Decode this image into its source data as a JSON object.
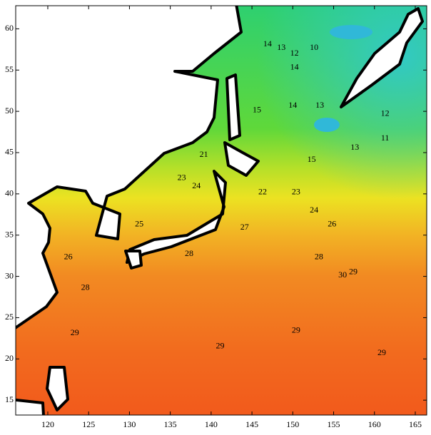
{
  "chart_data": {
    "type": "contour",
    "xlim": [
      116.07,
      166.4
    ],
    "ylim": [
      13.2,
      62.8
    ],
    "xticks": [
      120,
      125,
      130,
      135,
      140,
      145,
      150,
      155,
      160,
      165
    ],
    "yticks": [
      15,
      20,
      25,
      30,
      35,
      40,
      45,
      50,
      55,
      60
    ],
    "x": [
      146.9,
      148.6,
      150.2,
      152.6,
      150.2,
      145.6,
      150.0,
      153.3,
      161.3,
      161.3,
      157.6,
      152.3,
      139.1,
      136.4,
      138.2,
      146.3,
      150.4,
      152.6,
      154.8,
      144.1,
      137.3,
      153.2,
      156.1,
      157.4,
      124.6,
      131.2,
      122.5,
      150.4,
      141.1,
      123.3,
      160.9
    ],
    "y": [
      58.1,
      57.7,
      57.0,
      57.7,
      55.3,
      50.1,
      50.7,
      50.7,
      49.7,
      46.7,
      45.6,
      44.1,
      44.7,
      41.9,
      40.9,
      40.2,
      40.2,
      38.0,
      36.3,
      35.9,
      32.7,
      32.3,
      30.1,
      30.5,
      28.6,
      36.3,
      32.3,
      23.4,
      21.5,
      23.1,
      20.7
    ],
    "values": [
      14,
      13,
      12,
      10,
      14,
      15,
      14,
      13,
      12,
      11,
      13,
      15,
      21,
      23,
      24,
      22,
      23,
      24,
      26,
      27,
      28,
      28,
      30,
      29,
      28,
      25,
      26,
      29,
      29,
      29,
      29
    ]
  }
}
